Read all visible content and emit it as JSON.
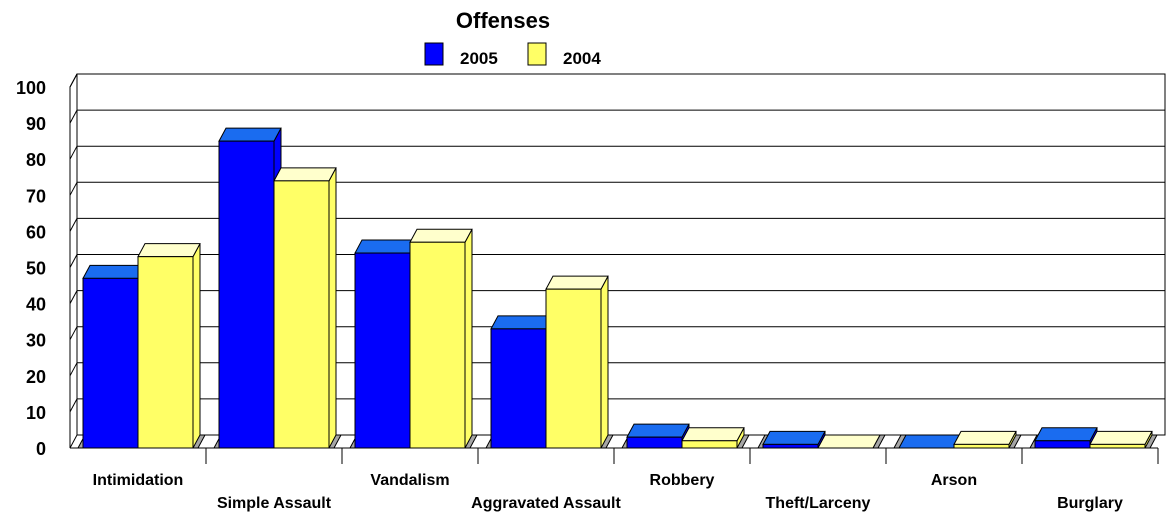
{
  "chart_data": {
    "type": "bar",
    "title": "Offenses",
    "categories": [
      "Intimidation",
      "Simple Assault",
      "Vandalism",
      "Aggravated Assault",
      "Robbery",
      "Theft/Larceny",
      "Arson",
      "Burglary"
    ],
    "series": [
      {
        "name": "2005",
        "values": [
          47,
          85,
          54,
          33,
          3,
          1,
          0,
          2
        ],
        "color": "#0000ff",
        "top_color": "#1a6cf0"
      },
      {
        "name": "2004",
        "values": [
          53,
          74,
          57,
          44,
          2,
          0,
          1,
          1
        ],
        "color": "#ffff66",
        "top_color": "#ffffcc"
      }
    ],
    "yticks": [
      0,
      10,
      20,
      30,
      40,
      50,
      60,
      70,
      80,
      90,
      100
    ],
    "ylim": [
      0,
      100
    ],
    "xlabel": "",
    "ylabel": "",
    "grid": true,
    "legend": "top-center",
    "three_d": true
  }
}
